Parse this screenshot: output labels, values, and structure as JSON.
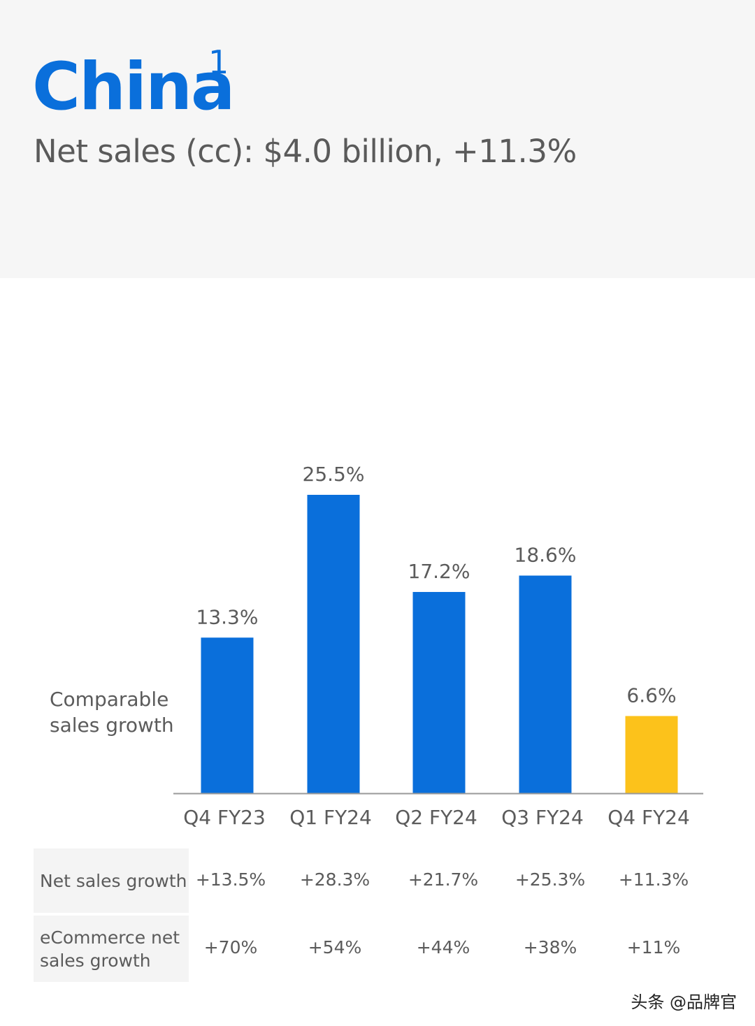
{
  "header": {
    "title": "China",
    "title_superscript": "1",
    "subtitle": "Net sales (cc): $4.0 billion, +11.3%"
  },
  "side_label": {
    "line1": "Comparable",
    "line2": "sales growth"
  },
  "colors": {
    "title_blue": "#0a6fdb",
    "bar_blue": "#0a6fdb",
    "bar_highlight": "#fcc21b",
    "header_bg": "#f6f6f6",
    "axis": "#9a9a9a"
  },
  "chart_data": {
    "type": "bar",
    "categories": [
      "Q4 FY23",
      "Q1 FY24",
      "Q2 FY24",
      "Q3 FY24",
      "Q4 FY24"
    ],
    "values": [
      13.3,
      25.5,
      17.2,
      18.6,
      6.6
    ],
    "data_labels": [
      "13.3%",
      "25.5%",
      "17.2%",
      "18.6%",
      "6.6%"
    ],
    "highlight_index": 4,
    "title": "",
    "xlabel": "",
    "ylabel": "Comparable sales growth",
    "ylim": [
      0,
      25.5
    ],
    "grid": false,
    "legend": "none"
  },
  "table": {
    "rows": [
      {
        "label_lines": [
          "Net sales growth"
        ],
        "values": [
          "+13.5%",
          "+28.3%",
          "+21.7%",
          "+25.3%",
          "+11.3%"
        ]
      },
      {
        "label_lines": [
          "eCommerce net",
          "sales growth"
        ],
        "values": [
          "+70%",
          "+54%",
          "+44%",
          "+38%",
          "+11%"
        ]
      }
    ]
  },
  "watermark": "头条 @品牌官"
}
